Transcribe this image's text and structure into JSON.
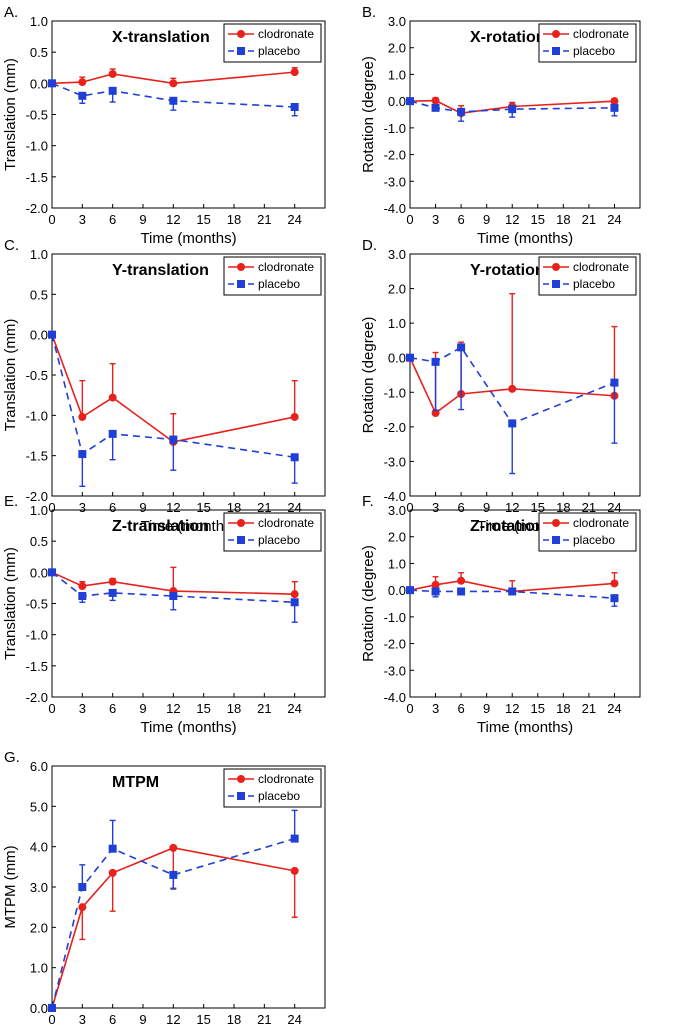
{
  "colors": {
    "clodronate": "#e8211c",
    "placebo": "#1f3fd6",
    "axis": "#000000"
  },
  "chart_data": [
    {
      "type": "line",
      "panel_label": "A.",
      "title": "X-translation",
      "xlabel": "Time (months)",
      "ylabel": "Translation (mm)",
      "xlim": [
        0,
        27
      ],
      "ylim": [
        -2.0,
        1.0
      ],
      "xticks": [
        "0",
        "3",
        "6",
        "9",
        "12",
        "15",
        "18",
        "21",
        "24"
      ],
      "yticks": [
        "-2.0",
        "-1.5",
        "-1.0",
        "-0.5",
        "0.0",
        "0.5",
        "1.0"
      ],
      "legend": "top-right",
      "x": [
        0,
        3,
        6,
        12,
        24
      ],
      "series": [
        {
          "name": "clodronate",
          "values": [
            0,
            0.02,
            0.15,
            0.0,
            0.18
          ],
          "err_plus": [
            0,
            0.08,
            0.08,
            0.08,
            0.07
          ],
          "err_minus": [
            0,
            0,
            0,
            0,
            0
          ]
        },
        {
          "name": "placebo",
          "values": [
            0,
            -0.2,
            -0.12,
            -0.28,
            -0.38
          ],
          "err_plus": [
            0,
            0,
            0,
            0,
            0
          ],
          "err_minus": [
            0,
            0.12,
            0.18,
            0.15,
            0.14
          ]
        }
      ]
    },
    {
      "type": "line",
      "panel_label": "B.",
      "title": "X-rotation",
      "xlabel": "Time (months)",
      "ylabel": "Rotation (degree)",
      "xlim": [
        0,
        27
      ],
      "ylim": [
        -4.0,
        3.0
      ],
      "xticks": [
        "0",
        "3",
        "6",
        "9",
        "12",
        "15",
        "18",
        "21",
        "24"
      ],
      "yticks": [
        "-4.0",
        "-3.0",
        "-2.0",
        "-1.0",
        "0.0",
        "1.0",
        "2.0",
        "3.0"
      ],
      "legend": "top-right",
      "x": [
        0,
        3,
        6,
        12,
        24
      ],
      "series": [
        {
          "name": "clodronate",
          "values": [
            0,
            0.02,
            -0.45,
            -0.2,
            0.0
          ],
          "err_plus": [
            0,
            0.1,
            0.28,
            0.15,
            0.1
          ],
          "err_minus": [
            0,
            0,
            0,
            0,
            0
          ]
        },
        {
          "name": "placebo",
          "values": [
            0,
            -0.25,
            -0.4,
            -0.3,
            -0.25
          ],
          "err_plus": [
            0,
            0,
            0,
            0,
            0
          ],
          "err_minus": [
            0,
            0.08,
            0.35,
            0.3,
            0.3
          ]
        }
      ]
    },
    {
      "type": "line",
      "panel_label": "C.",
      "title": "Y-translation",
      "xlabel": "Time (months)",
      "ylabel": "Translation (mm)",
      "xlim": [
        0,
        27
      ],
      "ylim": [
        -2.0,
        1.0
      ],
      "xticks": [
        "0",
        "3",
        "6",
        "9",
        "12",
        "15",
        "18",
        "21",
        "24"
      ],
      "yticks": [
        "-2.0",
        "-1.5",
        "-1.0",
        "-0.5",
        "0.0",
        "0.5",
        "1.0"
      ],
      "legend": "top-right",
      "x": [
        0,
        3,
        6,
        12,
        24
      ],
      "series": [
        {
          "name": "clodronate",
          "values": [
            0,
            -1.02,
            -0.78,
            -1.33,
            -1.02
          ],
          "err_plus": [
            0,
            0.45,
            0.42,
            0.35,
            0.45
          ],
          "err_minus": [
            0,
            0,
            0,
            0,
            0
          ]
        },
        {
          "name": "placebo",
          "values": [
            0,
            -1.48,
            -1.23,
            -1.3,
            -1.52
          ],
          "err_plus": [
            0,
            0,
            0,
            0,
            0
          ],
          "err_minus": [
            0,
            0.4,
            0.32,
            0.38,
            0.32
          ]
        }
      ]
    },
    {
      "type": "line",
      "panel_label": "D.",
      "title": "Y-rotation",
      "xlabel": "Time (months)",
      "ylabel": "Rotation (degree)",
      "xlim": [
        0,
        27
      ],
      "ylim": [
        -4.0,
        3.0
      ],
      "xticks": [
        "0",
        "3",
        "6",
        "9",
        "12",
        "15",
        "18",
        "21",
        "24"
      ],
      "yticks": [
        "-4.0",
        "-3.0",
        "-2.0",
        "-1.0",
        "0.0",
        "1.0",
        "2.0",
        "3.0"
      ],
      "legend": "top-right",
      "x": [
        0,
        3,
        6,
        12,
        24
      ],
      "series": [
        {
          "name": "clodronate",
          "values": [
            0,
            -1.6,
            -1.05,
            -0.9,
            -1.1
          ],
          "err_plus": [
            0,
            1.75,
            1.5,
            2.75,
            2.0
          ],
          "err_minus": [
            0,
            0,
            0,
            0,
            0
          ]
        },
        {
          "name": "placebo",
          "values": [
            0,
            -0.12,
            0.3,
            -1.9,
            -0.72
          ],
          "err_plus": [
            0,
            0,
            0,
            0,
            0
          ],
          "err_minus": [
            0,
            1.4,
            1.8,
            1.45,
            1.75
          ]
        }
      ]
    },
    {
      "type": "line",
      "panel_label": "E.",
      "title": "Z-translation",
      "xlabel": "Time (months)",
      "ylabel": "Translation (mm)",
      "xlim": [
        0,
        27
      ],
      "ylim": [
        -2.0,
        1.0
      ],
      "xticks": [
        "0",
        "3",
        "6",
        "9",
        "12",
        "15",
        "18",
        "21",
        "24"
      ],
      "yticks": [
        "-2.0",
        "-1.5",
        "-1.0",
        "-0.5",
        "0.0",
        "0.5",
        "1.0"
      ],
      "legend": "top-right",
      "x": [
        0,
        3,
        6,
        12,
        24
      ],
      "series": [
        {
          "name": "clodronate",
          "values": [
            0,
            -0.22,
            -0.15,
            -0.3,
            -0.35
          ],
          "err_plus": [
            0,
            0.07,
            0.05,
            0.38,
            0.2
          ],
          "err_minus": [
            0,
            0,
            0,
            0,
            0
          ]
        },
        {
          "name": "placebo",
          "values": [
            0,
            -0.38,
            -0.33,
            -0.38,
            -0.48
          ],
          "err_plus": [
            0,
            0,
            0,
            0,
            0
          ],
          "err_minus": [
            0,
            0.1,
            0.12,
            0.22,
            0.32
          ]
        }
      ]
    },
    {
      "type": "line",
      "panel_label": "F.",
      "title": "Z-rotation",
      "xlabel": "Time (months)",
      "ylabel": "Rotation (degree)",
      "xlim": [
        0,
        27
      ],
      "ylim": [
        -4.0,
        3.0
      ],
      "xticks": [
        "0",
        "3",
        "6",
        "9",
        "12",
        "15",
        "18",
        "21",
        "24"
      ],
      "yticks": [
        "-4.0",
        "-3.0",
        "-2.0",
        "-1.0",
        "0.0",
        "1.0",
        "2.0",
        "3.0"
      ],
      "legend": "top-right",
      "x": [
        0,
        3,
        6,
        12,
        24
      ],
      "series": [
        {
          "name": "clodronate",
          "values": [
            0,
            0.2,
            0.35,
            -0.05,
            0.25
          ],
          "err_plus": [
            0,
            0.3,
            0.3,
            0.4,
            0.4
          ],
          "err_minus": [
            0,
            0,
            0,
            0,
            0
          ]
        },
        {
          "name": "placebo",
          "values": [
            0,
            -0.05,
            -0.05,
            -0.05,
            -0.3
          ],
          "err_plus": [
            0,
            0,
            0,
            0,
            0
          ],
          "err_minus": [
            0,
            0.2,
            0.1,
            0.1,
            0.3
          ]
        }
      ]
    },
    {
      "type": "line",
      "panel_label": "G.",
      "title": "MTPM",
      "xlabel": "Time (months)",
      "ylabel": "MTPM (mm)",
      "xlim": [
        0,
        27
      ],
      "ylim": [
        0.0,
        6.0
      ],
      "xticks": [
        "0",
        "3",
        "6",
        "9",
        "12",
        "15",
        "18",
        "21",
        "24"
      ],
      "yticks": [
        "0.0",
        "1.0",
        "2.0",
        "3.0",
        "4.0",
        "5.0",
        "6.0"
      ],
      "legend": "top-right",
      "x": [
        0,
        3,
        6,
        12,
        24
      ],
      "series": [
        {
          "name": "clodronate",
          "values": [
            0,
            2.5,
            3.35,
            3.97,
            3.4
          ],
          "err_plus": [
            0,
            0,
            0,
            0,
            0
          ],
          "err_minus": [
            0,
            0.8,
            0.95,
            1.0,
            1.15
          ]
        },
        {
          "name": "placebo",
          "values": [
            0,
            3.0,
            3.95,
            3.3,
            4.2
          ],
          "err_plus": [
            0,
            0.55,
            0.7,
            0,
            0.7
          ],
          "err_minus": [
            0,
            0,
            0,
            0.35,
            0
          ]
        }
      ]
    }
  ]
}
